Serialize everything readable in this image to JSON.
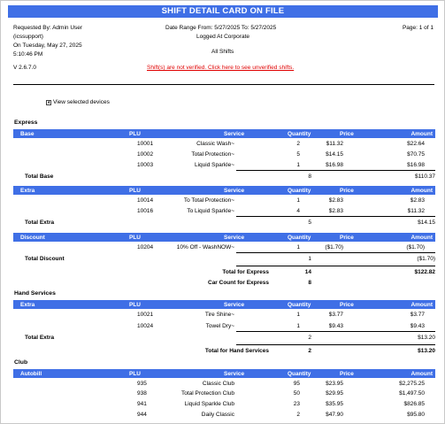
{
  "report": {
    "title": "SHIFT DETAIL CARD ON FILE",
    "requested_by": "Requested By: Admin User",
    "requested_login": "(icssupport)",
    "on_date": "On Tuesday, May 27, 2025",
    "on_time": "5:10:46 PM",
    "version": "V 2.6.7.0",
    "date_range": "Date Range From: 5/27/2025 To: 5/27/2025",
    "logged_at": "Logged At Corporate",
    "shifts": "All Shifts",
    "page": "Page: 1 of 1",
    "warning": "Shift(s) are not verified. Click here to see unverified shifts.",
    "view_devices": "View selected devices"
  },
  "columns": {
    "plu": "PLU",
    "service": "Service",
    "quantity": "Quantity",
    "price": "Price",
    "amount": "Amount"
  },
  "sections": {
    "express": {
      "title": "Express",
      "base": {
        "name": "Base",
        "rows": [
          {
            "plu": "10001",
            "service": "Classic Wash~",
            "qty": "2",
            "price": "$11.32",
            "amount": "$22.64"
          },
          {
            "plu": "10002",
            "service": "Total Protection~",
            "qty": "5",
            "price": "$14.15",
            "amount": "$70.75"
          },
          {
            "plu": "10003",
            "service": "Liquid Sparkle~",
            "qty": "1",
            "price": "$16.98",
            "amount": "$16.98"
          }
        ],
        "total_label": "Total Base",
        "total_qty": "8",
        "total_amount": "$110.37"
      },
      "extra": {
        "name": "Extra",
        "rows": [
          {
            "plu": "10014",
            "service": "To Total Protection~",
            "qty": "1",
            "price": "$2.83",
            "amount": "$2.83"
          },
          {
            "plu": "10016",
            "service": "To Liquid Sparkle~",
            "qty": "4",
            "price": "$2.83",
            "amount": "$11.32"
          }
        ],
        "total_label": "Total Extra",
        "total_qty": "5",
        "total_amount": "$14.15"
      },
      "discount": {
        "name": "Discount",
        "rows": [
          {
            "plu": "10204",
            "service": "10% Off - WashNOW~",
            "qty": "1",
            "price": "($1.70)",
            "amount": "($1.70)"
          }
        ],
        "total_label": "Total Discount",
        "total_qty": "1",
        "total_amount": "($1.70)"
      },
      "total_label": "Total for Express",
      "total_qty": "14",
      "total_amount": "$122.82",
      "car_count_label": "Car Count for Express",
      "car_count": "8"
    },
    "hand_services": {
      "title": "Hand Services",
      "extra": {
        "name": "Extra",
        "rows": [
          {
            "plu": "10021",
            "service": "Tire Shine~",
            "qty": "1",
            "price": "$3.77",
            "amount": "$3.77"
          },
          {
            "plu": "10024",
            "service": "Towel Dry~",
            "qty": "1",
            "price": "$9.43",
            "amount": "$9.43"
          }
        ],
        "total_label": "Total Extra",
        "total_qty": "2",
        "total_amount": "$13.20"
      },
      "total_label": "Total for Hand Services",
      "total_qty": "2",
      "total_amount": "$13.20"
    },
    "club": {
      "title": "Club",
      "autobill": {
        "name": "Autobill",
        "rows": [
          {
            "plu": "935",
            "service": "Classic Club",
            "qty": "95",
            "price": "$23.95",
            "amount": "$2,275.25"
          },
          {
            "plu": "938",
            "service": "Total Protection Club",
            "qty": "50",
            "price": "$29.95",
            "amount": "$1,497.50"
          },
          {
            "plu": "941",
            "service": "Liquid Sparkle Club",
            "qty": "23",
            "price": "$35.95",
            "amount": "$826.85"
          },
          {
            "plu": "944",
            "service": "Daily Classic",
            "qty": "2",
            "price": "$47.90",
            "amount": "$95.80"
          }
        ]
      }
    }
  },
  "colors": {
    "header_blue": "#3f6fe6",
    "warning_red": "#e00000"
  }
}
